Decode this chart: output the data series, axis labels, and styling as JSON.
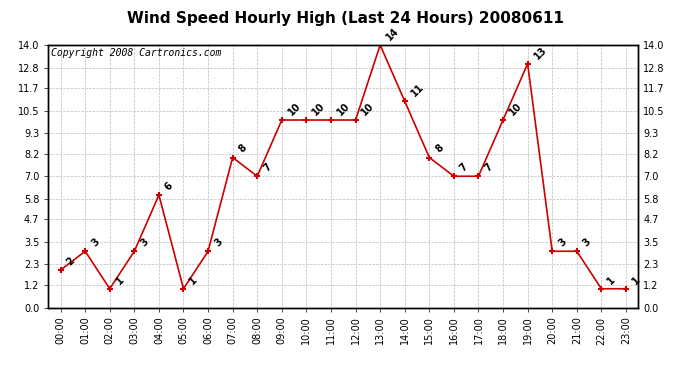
{
  "title": "Wind Speed Hourly High (Last 24 Hours) 20080611",
  "copyright": "Copyright 2008 Cartronics.com",
  "hours": [
    "00:00",
    "01:00",
    "02:00",
    "03:00",
    "04:00",
    "05:00",
    "06:00",
    "07:00",
    "08:00",
    "09:00",
    "10:00",
    "11:00",
    "12:00",
    "13:00",
    "14:00",
    "15:00",
    "16:00",
    "17:00",
    "18:00",
    "19:00",
    "20:00",
    "21:00",
    "22:00",
    "23:00"
  ],
  "values": [
    2,
    3,
    1,
    3,
    6,
    1,
    3,
    8,
    7,
    10,
    10,
    10,
    10,
    14,
    11,
    8,
    7,
    7,
    10,
    13,
    3,
    3,
    1,
    1
  ],
  "line_color": "#cc0000",
  "marker": "+",
  "marker_color": "#cc0000",
  "bg_color": "#ffffff",
  "grid_color": "#bbbbbb",
  "title_color": "#000000",
  "label_color": "#000000",
  "ylim": [
    0.0,
    14.0
  ],
  "yticks": [
    0.0,
    1.2,
    2.3,
    3.5,
    4.7,
    5.8,
    7.0,
    8.2,
    9.3,
    10.5,
    11.7,
    12.8,
    14.0
  ],
  "title_fontsize": 11,
  "annotation_fontsize": 7,
  "copyright_fontsize": 7,
  "tick_fontsize": 7
}
